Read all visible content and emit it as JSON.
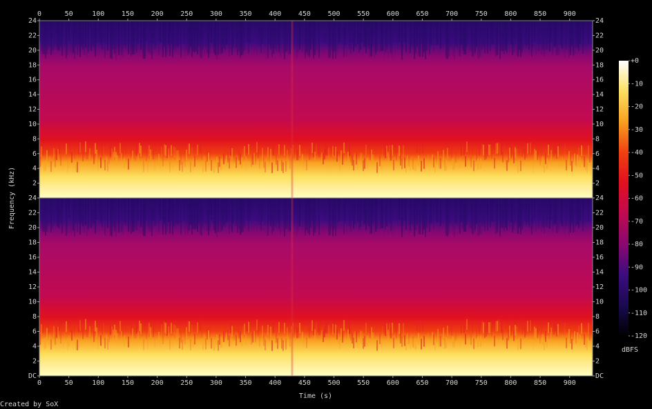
{
  "chart_data": {
    "type": "spectrogram",
    "xlabel": "Time (s)",
    "ylabel": "Frequency (kHz)",
    "xlim": [
      0,
      939
    ],
    "xticks": [
      0,
      50,
      100,
      150,
      200,
      250,
      300,
      350,
      400,
      450,
      500,
      550,
      600,
      650,
      700,
      750,
      800,
      850,
      900
    ],
    "channels": [
      {
        "ylim": [
          0,
          24
        ],
        "yticks": [
          2,
          4,
          6,
          8,
          10,
          12,
          14,
          16,
          18,
          20,
          22,
          24
        ]
      },
      {
        "ylim": [
          0,
          24
        ],
        "yticks": [
          {
            "value": 0,
            "label": "DC"
          },
          2,
          4,
          6,
          8,
          10,
          12,
          14,
          16,
          18,
          20,
          22,
          24
        ]
      }
    ],
    "colorbar": {
      "label": "dBFS",
      "lim": [
        -120,
        0
      ],
      "ticks": [
        {
          "value": 0,
          "label": "+0"
        },
        -10,
        -20,
        -30,
        -40,
        -50,
        -60,
        -70,
        -80,
        -90,
        -100,
        -110,
        -120
      ],
      "colors": [
        "#000000",
        "#1a0a50",
        "#3c0c80",
        "#8a0870",
        "#c00a50",
        "#e01020",
        "#f04010",
        "#f8a020",
        "#fde060",
        "#ffffff"
      ]
    },
    "footer": "Created by SoX"
  }
}
